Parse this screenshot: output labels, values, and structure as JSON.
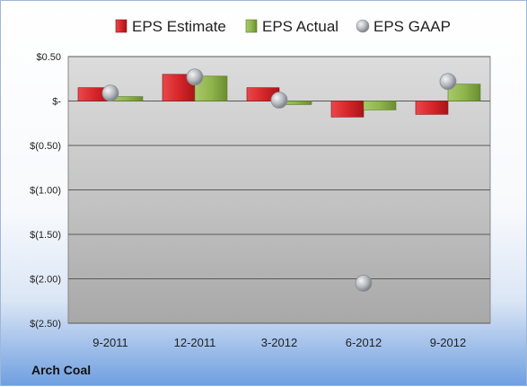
{
  "company": "Arch Coal",
  "colors": {
    "estimate": "#d7262b",
    "actual": "#8fb54c",
    "gaap": "#b5b8bd"
  },
  "chart_data": {
    "type": "bar",
    "categories": [
      "9-2011",
      "12-2011",
      "3-2012",
      "6-2012",
      "9-2012"
    ],
    "series": [
      {
        "name": "EPS Estimate",
        "type": "bar",
        "values": [
          0.15,
          0.3,
          0.15,
          -0.18,
          -0.15
        ]
      },
      {
        "name": "EPS Actual",
        "type": "bar",
        "values": [
          0.05,
          0.28,
          -0.04,
          -0.1,
          0.19
        ]
      },
      {
        "name": "EPS GAAP",
        "type": "scatter",
        "values": [
          0.09,
          0.27,
          0.01,
          -2.05,
          0.22
        ]
      }
    ],
    "ylim": [
      -2.5,
      0.5
    ],
    "yticks": [
      0.5,
      0,
      -0.5,
      -1.0,
      -1.5,
      -2.0,
      -2.5
    ],
    "ytick_labels": [
      "$0.50",
      "$-",
      "$(0.50)",
      "$(1.00)",
      "$(1.50)",
      "$(2.00)",
      "$(2.50)"
    ],
    "grid": true,
    "legend_position": "top"
  }
}
